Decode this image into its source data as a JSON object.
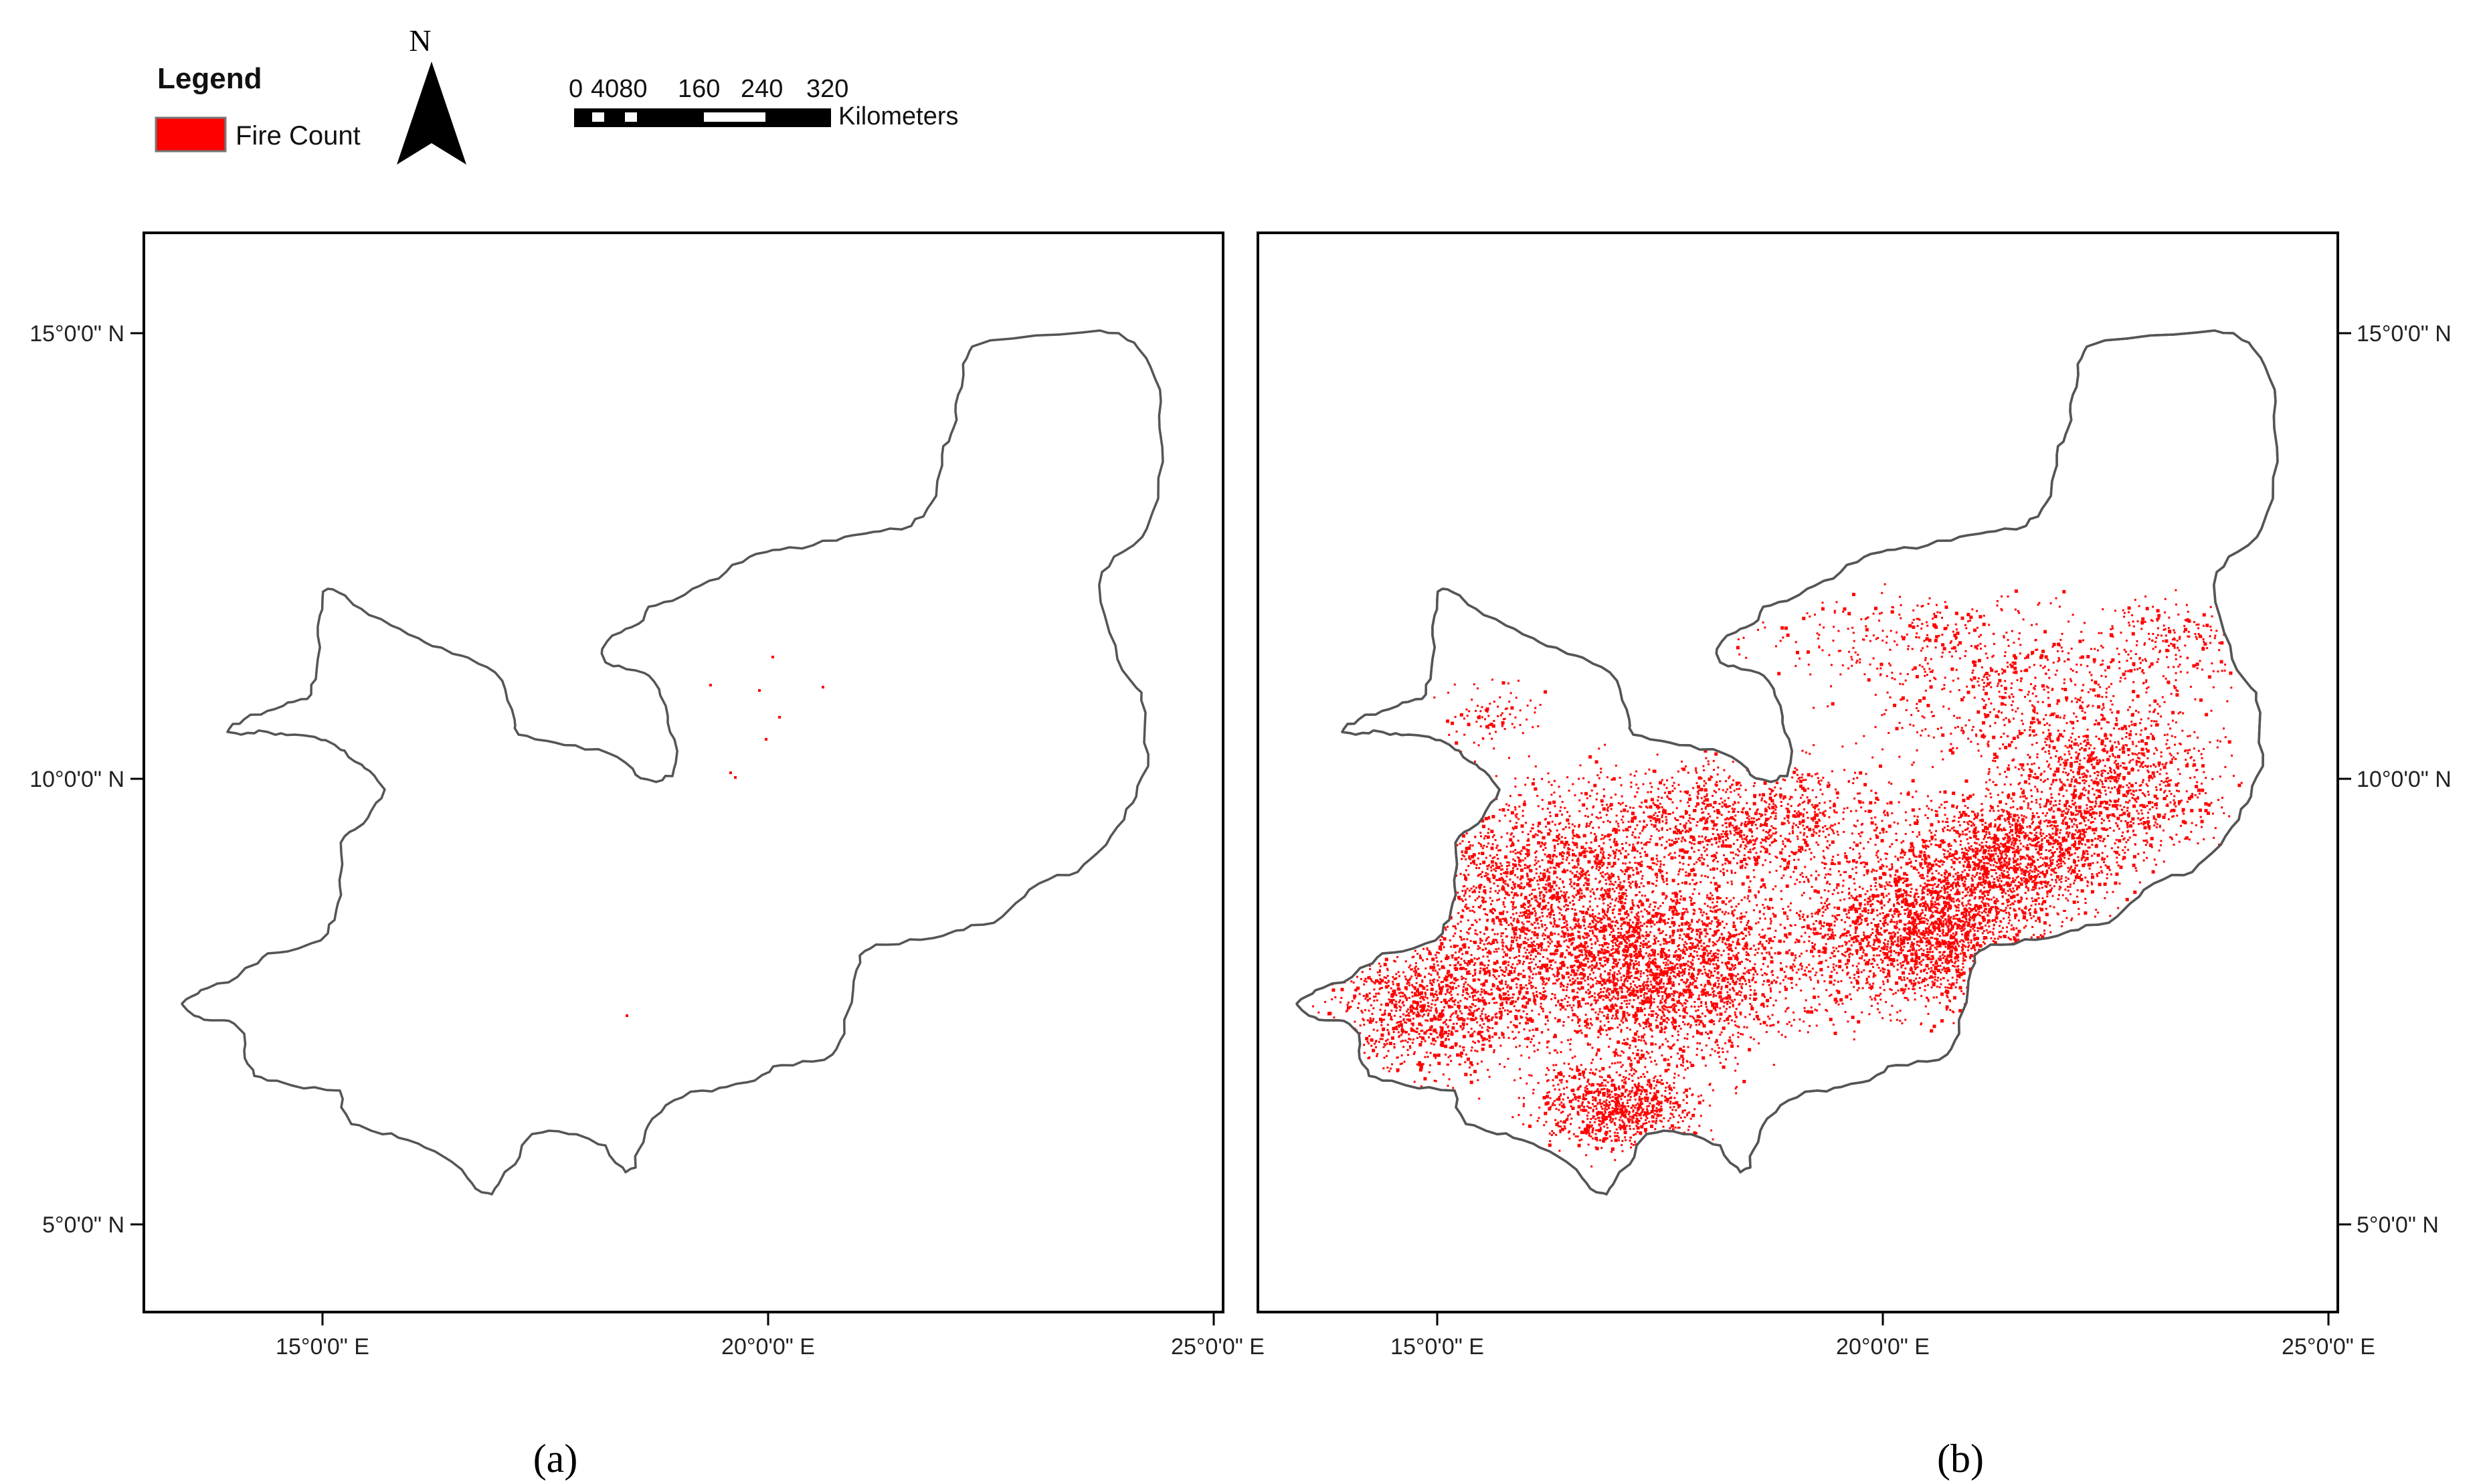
{
  "legend": {
    "title": "Legend",
    "item_label": "Fire Count",
    "item_color": "#ff0000"
  },
  "north_arrow": {
    "label": "N"
  },
  "scale_bar": {
    "ticks": [
      "0",
      "4080",
      "160",
      "240",
      "320"
    ],
    "unit": "Kilometers"
  },
  "axes": {
    "x_ticks": [
      "15°0'0\" E",
      "20°0'0\" E",
      "25°0'0\" E"
    ],
    "y_ticks": [
      "15°0'0\" N",
      "10°0'0\" N",
      "5°0'0\" N"
    ]
  },
  "panels": [
    {
      "caption": "(a)",
      "fire_density": "very low"
    },
    {
      "caption": "(b)",
      "fire_density": "high"
    }
  ],
  "colors": {
    "fire": "#ff0000",
    "boundary": "#555555",
    "frame": "#000000"
  }
}
